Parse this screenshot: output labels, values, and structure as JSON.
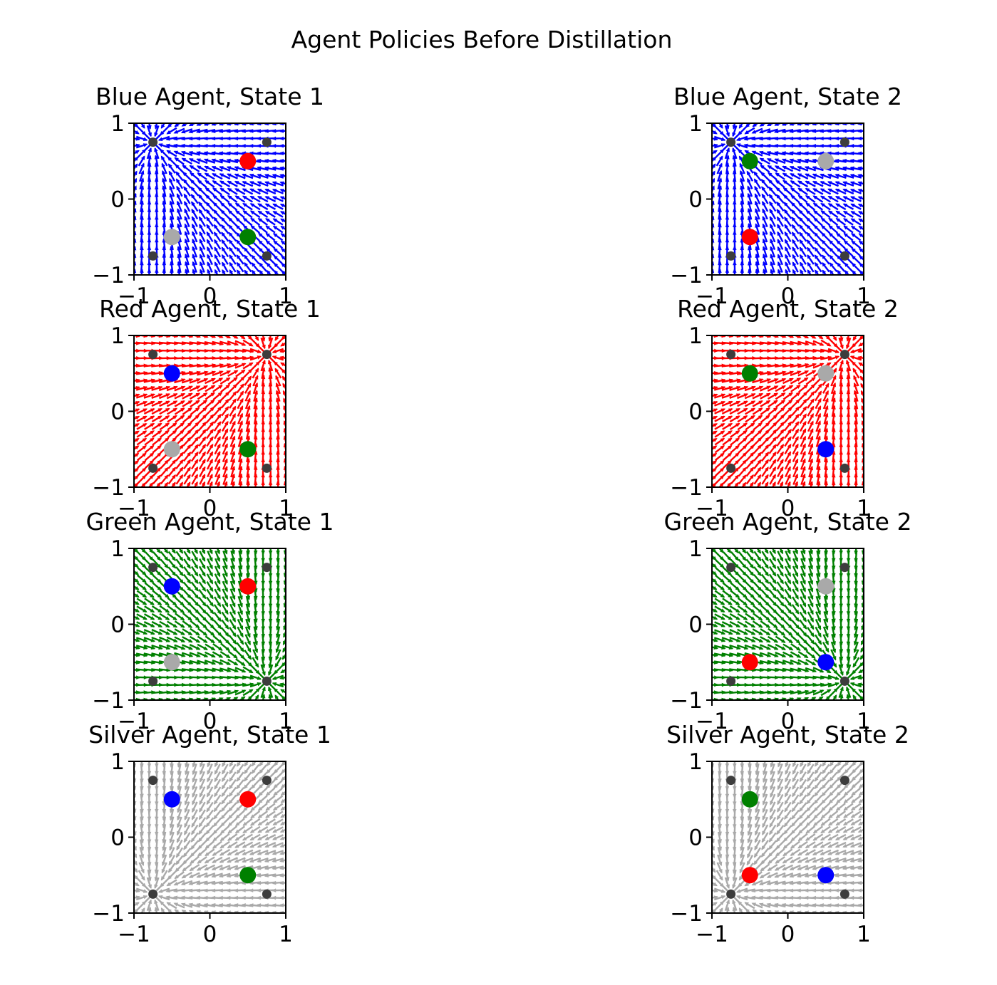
{
  "figure": {
    "suptitle": "Agent Policies Before Distillation"
  },
  "colors": {
    "blue": "#0000ff",
    "red": "#ff0000",
    "green": "#008000",
    "silver": "#a9a9a9",
    "corner": "#3d3d3d"
  },
  "chart_data": [
    {
      "type": "quiver",
      "title": "Blue Agent, State 1",
      "field_color": "blue",
      "goal": [
        -0.75,
        0.75
      ],
      "xlim": [
        -1,
        1
      ],
      "ylim": [
        -1,
        1
      ],
      "xticks": [
        "−1",
        "0",
        "1"
      ],
      "yticks": [
        "−1",
        "0",
        "1"
      ],
      "corners": [
        [
          -0.75,
          0.75
        ],
        [
          0.75,
          0.75
        ],
        [
          -0.75,
          -0.75
        ],
        [
          0.75,
          -0.75
        ]
      ],
      "agents": [
        {
          "color": "red",
          "x": 0.5,
          "y": 0.5
        },
        {
          "color": "silver",
          "x": -0.5,
          "y": -0.5
        },
        {
          "color": "green",
          "x": 0.5,
          "y": -0.5
        }
      ]
    },
    {
      "type": "quiver",
      "title": "Blue Agent, State 2",
      "field_color": "blue",
      "goal": [
        -0.75,
        0.75
      ],
      "xlim": [
        -1,
        1
      ],
      "ylim": [
        -1,
        1
      ],
      "xticks": [
        "−1",
        "0",
        "1"
      ],
      "yticks": [
        "−1",
        "0",
        "1"
      ],
      "corners": [
        [
          -0.75,
          0.75
        ],
        [
          0.75,
          0.75
        ],
        [
          -0.75,
          -0.75
        ],
        [
          0.75,
          -0.75
        ]
      ],
      "agents": [
        {
          "color": "green",
          "x": -0.5,
          "y": 0.5
        },
        {
          "color": "silver",
          "x": 0.5,
          "y": 0.5
        },
        {
          "color": "red",
          "x": -0.5,
          "y": -0.5
        }
      ]
    },
    {
      "type": "quiver",
      "title": "Red Agent, State 1",
      "field_color": "red",
      "goal": [
        0.75,
        0.75
      ],
      "xlim": [
        -1,
        1
      ],
      "ylim": [
        -1,
        1
      ],
      "xticks": [
        "−1",
        "0",
        "1"
      ],
      "yticks": [
        "−1",
        "0",
        "1"
      ],
      "corners": [
        [
          -0.75,
          0.75
        ],
        [
          0.75,
          0.75
        ],
        [
          -0.75,
          -0.75
        ],
        [
          0.75,
          -0.75
        ]
      ],
      "agents": [
        {
          "color": "blue",
          "x": -0.5,
          "y": 0.5
        },
        {
          "color": "silver",
          "x": -0.5,
          "y": -0.5
        },
        {
          "color": "green",
          "x": 0.5,
          "y": -0.5
        }
      ]
    },
    {
      "type": "quiver",
      "title": "Red Agent, State 2",
      "field_color": "red",
      "goal": [
        0.75,
        0.75
      ],
      "xlim": [
        -1,
        1
      ],
      "ylim": [
        -1,
        1
      ],
      "xticks": [
        "−1",
        "0",
        "1"
      ],
      "yticks": [
        "−1",
        "0",
        "1"
      ],
      "corners": [
        [
          -0.75,
          0.75
        ],
        [
          0.75,
          0.75
        ],
        [
          -0.75,
          -0.75
        ],
        [
          0.75,
          -0.75
        ]
      ],
      "agents": [
        {
          "color": "green",
          "x": -0.5,
          "y": 0.5
        },
        {
          "color": "silver",
          "x": 0.5,
          "y": 0.5
        },
        {
          "color": "blue",
          "x": 0.5,
          "y": -0.5
        }
      ]
    },
    {
      "type": "quiver",
      "title": "Green Agent, State 1",
      "field_color": "green",
      "goal": [
        0.75,
        -0.75
      ],
      "xlim": [
        -1,
        1
      ],
      "ylim": [
        -1,
        1
      ],
      "xticks": [
        "−1",
        "0",
        "1"
      ],
      "yticks": [
        "−1",
        "0",
        "1"
      ],
      "corners": [
        [
          -0.75,
          0.75
        ],
        [
          0.75,
          0.75
        ],
        [
          -0.75,
          -0.75
        ],
        [
          0.75,
          -0.75
        ]
      ],
      "agents": [
        {
          "color": "blue",
          "x": -0.5,
          "y": 0.5
        },
        {
          "color": "red",
          "x": 0.5,
          "y": 0.5
        },
        {
          "color": "silver",
          "x": -0.5,
          "y": -0.5
        }
      ]
    },
    {
      "type": "quiver",
      "title": "Green Agent, State 2",
      "field_color": "green",
      "goal": [
        0.75,
        -0.75
      ],
      "xlim": [
        -1,
        1
      ],
      "ylim": [
        -1,
        1
      ],
      "xticks": [
        "−1",
        "0",
        "1"
      ],
      "yticks": [
        "−1",
        "0",
        "1"
      ],
      "corners": [
        [
          -0.75,
          0.75
        ],
        [
          0.75,
          0.75
        ],
        [
          -0.75,
          -0.75
        ],
        [
          0.75,
          -0.75
        ]
      ],
      "agents": [
        {
          "color": "silver",
          "x": 0.5,
          "y": 0.5
        },
        {
          "color": "red",
          "x": -0.5,
          "y": -0.5
        },
        {
          "color": "blue",
          "x": 0.5,
          "y": -0.5
        }
      ]
    },
    {
      "type": "quiver",
      "title": "Silver Agent, State 1",
      "field_color": "silver",
      "goal": [
        -0.75,
        -0.75
      ],
      "xlim": [
        -1,
        1
      ],
      "ylim": [
        -1,
        1
      ],
      "xticks": [
        "−1",
        "0",
        "1"
      ],
      "yticks": [
        "−1",
        "0",
        "1"
      ],
      "corners": [
        [
          -0.75,
          0.75
        ],
        [
          0.75,
          0.75
        ],
        [
          -0.75,
          -0.75
        ],
        [
          0.75,
          -0.75
        ]
      ],
      "agents": [
        {
          "color": "blue",
          "x": -0.5,
          "y": 0.5
        },
        {
          "color": "red",
          "x": 0.5,
          "y": 0.5
        },
        {
          "color": "green",
          "x": 0.5,
          "y": -0.5
        }
      ]
    },
    {
      "type": "quiver",
      "title": "Silver Agent, State 2",
      "field_color": "silver",
      "goal": [
        -0.75,
        -0.75
      ],
      "xlim": [
        -1,
        1
      ],
      "ylim": [
        -1,
        1
      ],
      "xticks": [
        "−1",
        "0",
        "1"
      ],
      "yticks": [
        "−1",
        "0",
        "1"
      ],
      "corners": [
        [
          -0.75,
          0.75
        ],
        [
          0.75,
          0.75
        ],
        [
          -0.75,
          -0.75
        ],
        [
          0.75,
          -0.75
        ]
      ],
      "agents": [
        {
          "color": "green",
          "x": -0.5,
          "y": 0.5
        },
        {
          "color": "red",
          "x": -0.5,
          "y": -0.5
        },
        {
          "color": "blue",
          "x": 0.5,
          "y": -0.5
        }
      ]
    }
  ]
}
